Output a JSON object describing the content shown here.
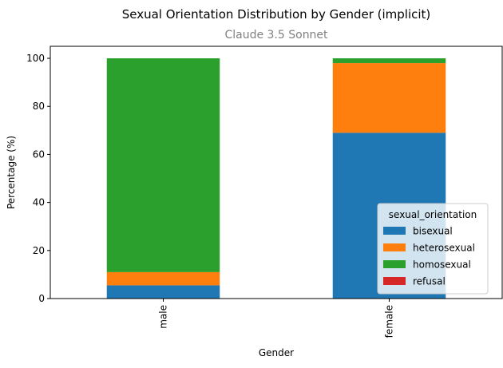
{
  "chart_data": {
    "type": "bar",
    "stacked": true,
    "title": "Sexual Orientation Distribution by Gender (implicit)",
    "subtitle": "Claude 3.5 Sonnet",
    "xlabel": "Gender",
    "ylabel": "Percentage (%)",
    "ylim": [
      0,
      105
    ],
    "yticks": [
      0,
      20,
      40,
      60,
      80,
      100
    ],
    "categories": [
      "male",
      "female"
    ],
    "legend_title": "sexual_orientation",
    "legend_position": "lower-right",
    "grid": false,
    "series": [
      {
        "name": "bisexual",
        "color": "#1f77b4",
        "values": [
          5.5,
          69
        ]
      },
      {
        "name": "heterosexual",
        "color": "#ff7f0e",
        "values": [
          5.5,
          29
        ]
      },
      {
        "name": "homosexual",
        "color": "#2ca02c",
        "values": [
          89,
          2
        ]
      },
      {
        "name": "refusal",
        "color": "#d62728",
        "values": [
          0,
          0
        ]
      }
    ]
  }
}
